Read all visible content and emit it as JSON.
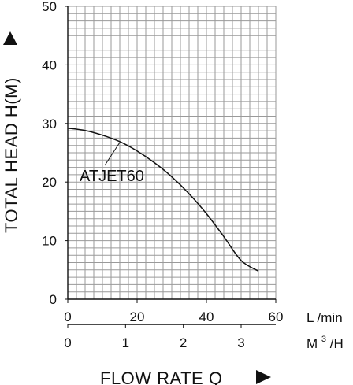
{
  "chart_data": {
    "type": "line",
    "xlabel": "FLOW RATE Q",
    "ylabel": "TOTAL HEAD H(M)",
    "x_unit": "L /min",
    "secondary_x_unit_base": "M",
    "secondary_x_unit_sup": "3",
    "secondary_x_unit_tail": "/H",
    "xlim": [
      0,
      60
    ],
    "ylim": [
      0,
      50
    ],
    "x_ticks": [
      "0",
      "20",
      "40",
      "60"
    ],
    "y_ticks": [
      "0",
      "10",
      "20",
      "30",
      "40",
      "50"
    ],
    "secondary_x_ticks": [
      "0",
      "1",
      "2",
      "3"
    ],
    "grid": true,
    "series": [
      {
        "name": "ATJET60",
        "x": [
          0,
          5,
          10,
          15,
          20,
          25,
          30,
          35,
          40,
          45,
          50,
          55
        ],
        "y": [
          29.2,
          28.8,
          28.0,
          26.9,
          25.3,
          23.3,
          20.9,
          18.0,
          14.6,
          10.7,
          6.6,
          4.8
        ]
      }
    ],
    "colors": {
      "line": "#111111",
      "grid": "#9a9a9a",
      "axis": "#111111"
    }
  }
}
